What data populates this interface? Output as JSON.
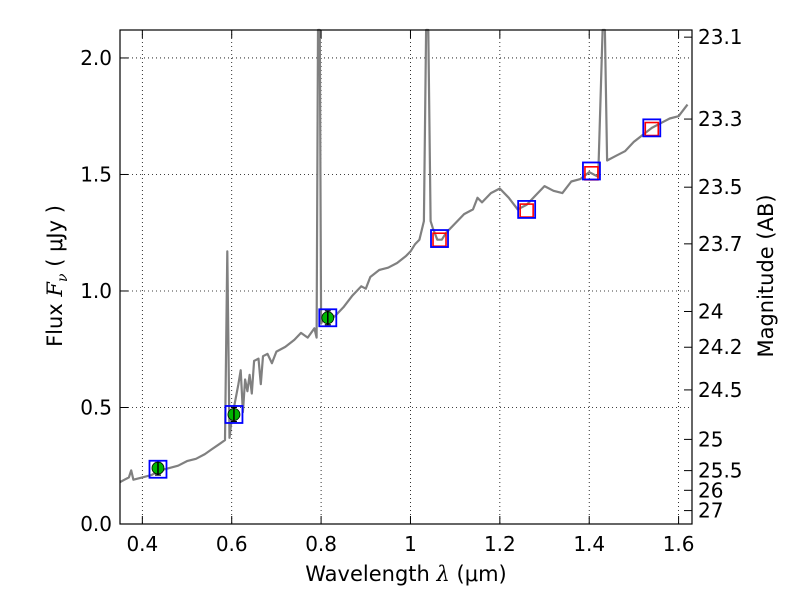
{
  "chart_data": {
    "type": "line",
    "x_axis": {
      "label_text": "Wavelength",
      "label_symbol": "λ",
      "label_unit": "(μm)",
      "lim": [
        0.35,
        1.63
      ],
      "ticks": [
        0.4,
        0.6,
        0.8,
        1.0,
        1.2,
        1.4,
        1.6
      ],
      "tick_labels": [
        "0.4",
        "0.6",
        "0.8",
        "1",
        "1.2",
        "1.4",
        "1.6"
      ]
    },
    "y_axis": {
      "label_text": "Flux",
      "label_symbol": "F",
      "label_sub": "ν",
      "label_unit": "( μJy )",
      "lim": [
        0,
        2.12
      ],
      "ticks": [
        0,
        0.5,
        1.0,
        1.5,
        2.0
      ],
      "tick_labels": [
        "0.0",
        "0.5",
        "1.0",
        "1.5",
        "2.0"
      ]
    },
    "y2_axis": {
      "label": "Magnitude (AB)",
      "ticks": [
        23.1,
        23.3,
        23.5,
        23.7,
        24,
        24.2,
        24.5,
        25,
        25.5,
        26,
        27
      ],
      "tick_labels": [
        "23.1",
        "23.3",
        "23.5",
        "23.7",
        "24",
        "24.2",
        "24.5",
        "25",
        "25.5",
        "26",
        "27"
      ]
    },
    "grid": true,
    "series": [
      {
        "kind": "model-spectrum",
        "color": "#808080",
        "points": [
          [
            0.35,
            0.18
          ],
          [
            0.36,
            0.19
          ],
          [
            0.37,
            0.2
          ],
          [
            0.375,
            0.23
          ],
          [
            0.38,
            0.19
          ],
          [
            0.4,
            0.2
          ],
          [
            0.42,
            0.21
          ],
          [
            0.44,
            0.23
          ],
          [
            0.46,
            0.24
          ],
          [
            0.48,
            0.25
          ],
          [
            0.5,
            0.27
          ],
          [
            0.52,
            0.28
          ],
          [
            0.54,
            0.3
          ],
          [
            0.555,
            0.32
          ],
          [
            0.57,
            0.34
          ],
          [
            0.585,
            0.36
          ],
          [
            0.59,
            1.17
          ],
          [
            0.595,
            0.37
          ],
          [
            0.6,
            0.45
          ],
          [
            0.61,
            0.55
          ],
          [
            0.615,
            0.6
          ],
          [
            0.62,
            0.66
          ],
          [
            0.625,
            0.48
          ],
          [
            0.63,
            0.62
          ],
          [
            0.635,
            0.57
          ],
          [
            0.64,
            0.64
          ],
          [
            0.645,
            0.56
          ],
          [
            0.65,
            0.7
          ],
          [
            0.66,
            0.71
          ],
          [
            0.665,
            0.6
          ],
          [
            0.67,
            0.72
          ],
          [
            0.68,
            0.73
          ],
          [
            0.69,
            0.69
          ],
          [
            0.7,
            0.74
          ],
          [
            0.72,
            0.76
          ],
          [
            0.74,
            0.79
          ],
          [
            0.755,
            0.82
          ],
          [
            0.77,
            0.8
          ],
          [
            0.785,
            0.84
          ],
          [
            0.79,
            0.8
          ],
          [
            0.793,
            2.12
          ],
          [
            0.797,
            2.12
          ],
          [
            0.8,
            0.86
          ],
          [
            0.81,
            0.9
          ],
          [
            0.83,
            0.89
          ],
          [
            0.85,
            0.93
          ],
          [
            0.87,
            0.98
          ],
          [
            0.89,
            1.02
          ],
          [
            0.9,
            1.01
          ],
          [
            0.91,
            1.06
          ],
          [
            0.93,
            1.09
          ],
          [
            0.95,
            1.1
          ],
          [
            0.97,
            1.12
          ],
          [
            0.99,
            1.15
          ],
          [
            1.0,
            1.17
          ],
          [
            1.01,
            1.2
          ],
          [
            1.02,
            1.22
          ],
          [
            1.03,
            1.3
          ],
          [
            1.035,
            2.12
          ],
          [
            1.04,
            2.12
          ],
          [
            1.045,
            1.3
          ],
          [
            1.05,
            1.27
          ],
          [
            1.06,
            1.22
          ],
          [
            1.07,
            1.22
          ],
          [
            1.08,
            1.25
          ],
          [
            1.1,
            1.29
          ],
          [
            1.12,
            1.33
          ],
          [
            1.14,
            1.35
          ],
          [
            1.15,
            1.4
          ],
          [
            1.16,
            1.38
          ],
          [
            1.18,
            1.42
          ],
          [
            1.2,
            1.44
          ],
          [
            1.22,
            1.4
          ],
          [
            1.24,
            1.35
          ],
          [
            1.26,
            1.37
          ],
          [
            1.28,
            1.41
          ],
          [
            1.3,
            1.45
          ],
          [
            1.32,
            1.43
          ],
          [
            1.34,
            1.42
          ],
          [
            1.36,
            1.47
          ],
          [
            1.38,
            1.48
          ],
          [
            1.4,
            1.51
          ],
          [
            1.42,
            1.49
          ],
          [
            1.43,
            2.12
          ],
          [
            1.435,
            2.12
          ],
          [
            1.44,
            1.56
          ],
          [
            1.46,
            1.58
          ],
          [
            1.48,
            1.6
          ],
          [
            1.5,
            1.64
          ],
          [
            1.52,
            1.67
          ],
          [
            1.54,
            1.7
          ],
          [
            1.56,
            1.72
          ],
          [
            1.58,
            1.74
          ],
          [
            1.6,
            1.75
          ],
          [
            1.62,
            1.8
          ]
        ]
      }
    ],
    "model_photometry": {
      "kind": "blue-open-squares",
      "color": "#0000ff",
      "points": [
        [
          0.435,
          0.235
        ],
        [
          0.605,
          0.47
        ],
        [
          0.815,
          0.885
        ],
        [
          1.065,
          1.225
        ],
        [
          1.26,
          1.35
        ],
        [
          1.405,
          1.515
        ],
        [
          1.54,
          1.7
        ]
      ]
    },
    "observed_detections": {
      "kind": "green-filled-circles-with-error-bars",
      "color": "#00b400",
      "points": [
        {
          "x": 0.435,
          "y": 0.24,
          "err": 0.03
        },
        {
          "x": 0.605,
          "y": 0.47,
          "err": 0.03
        },
        {
          "x": 0.815,
          "y": 0.885,
          "err": 0.03
        }
      ]
    },
    "observed_limits": {
      "kind": "red-open-squares",
      "color": "#ff0000",
      "points": [
        [
          1.065,
          1.22
        ],
        [
          1.26,
          1.345
        ],
        [
          1.405,
          1.505
        ],
        [
          1.54,
          1.695
        ]
      ]
    }
  }
}
